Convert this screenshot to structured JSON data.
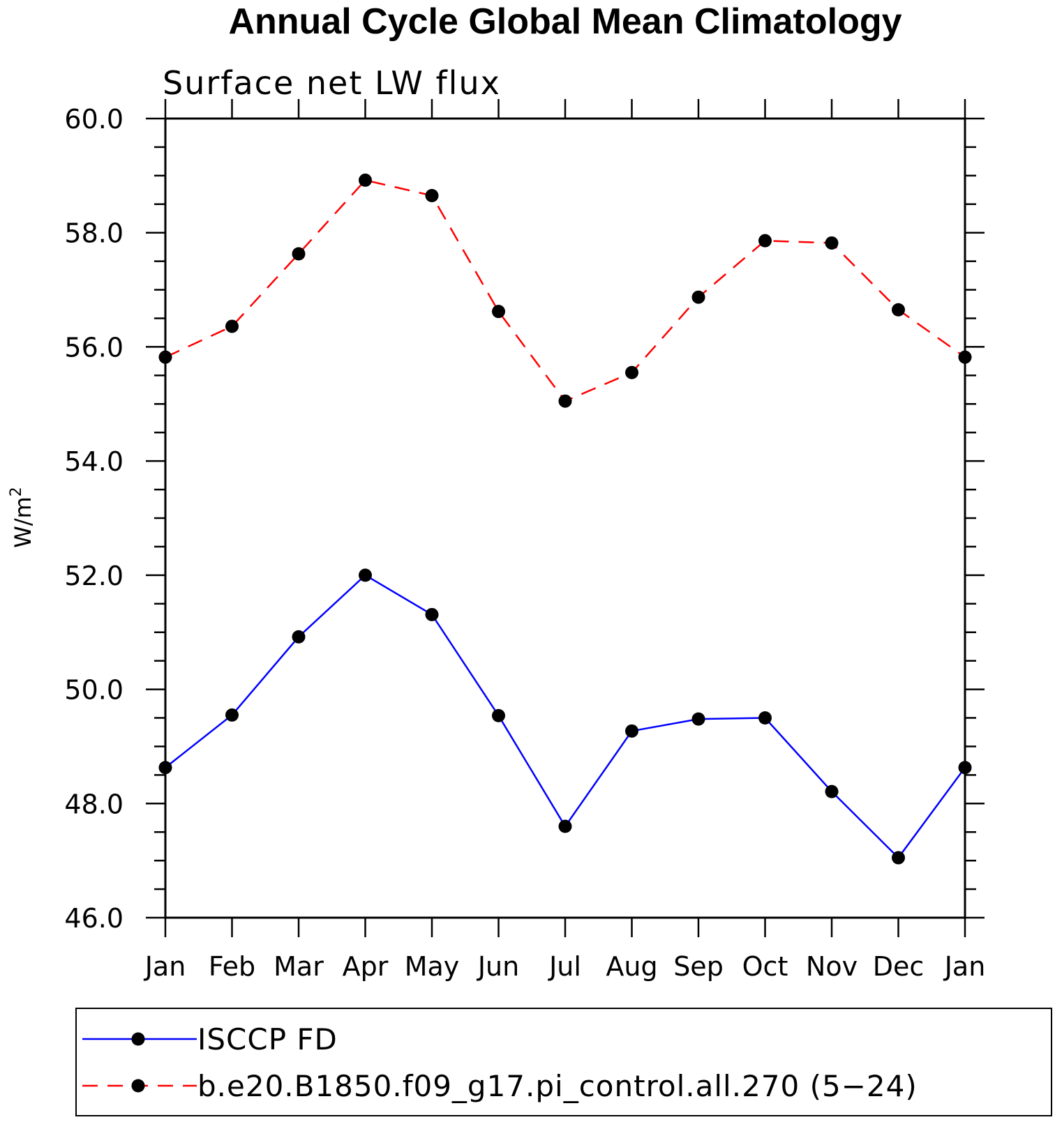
{
  "chart_data": {
    "type": "line",
    "title": "Annual Cycle Global Mean Climatology",
    "subtitle": "Surface net LW flux",
    "xlabel": "",
    "ylabel": "W/m",
    "ylabel_sup": "2",
    "categories": [
      "Jan",
      "Feb",
      "Mar",
      "Apr",
      "May",
      "Jun",
      "Jul",
      "Aug",
      "Sep",
      "Oct",
      "Nov",
      "Dec",
      "Jan"
    ],
    "ylim": [
      46.0,
      60.0
    ],
    "yticks": [
      "46.0",
      "48.0",
      "50.0",
      "52.0",
      "54.0",
      "56.0",
      "58.0",
      "60.0"
    ],
    "grid": false,
    "legend_position": "bottom",
    "series": [
      {
        "name": "ISCCP FD",
        "color": "#0000ff",
        "dash": "solid",
        "marker": "filled-circle",
        "values": [
          48.63,
          49.55,
          50.92,
          52.0,
          51.31,
          49.54,
          47.6,
          49.27,
          49.48,
          49.5,
          48.21,
          47.05,
          48.63
        ]
      },
      {
        "name": "b.e20.B1850.f09_g17.pi_control.all.270 (5−24)",
        "color": "#ff0000",
        "dash": "dashed",
        "marker": "filled-circle",
        "values": [
          55.82,
          56.36,
          57.63,
          58.92,
          58.65,
          56.62,
          55.05,
          55.55,
          56.87,
          57.86,
          57.82,
          56.65,
          55.82
        ]
      }
    ]
  }
}
